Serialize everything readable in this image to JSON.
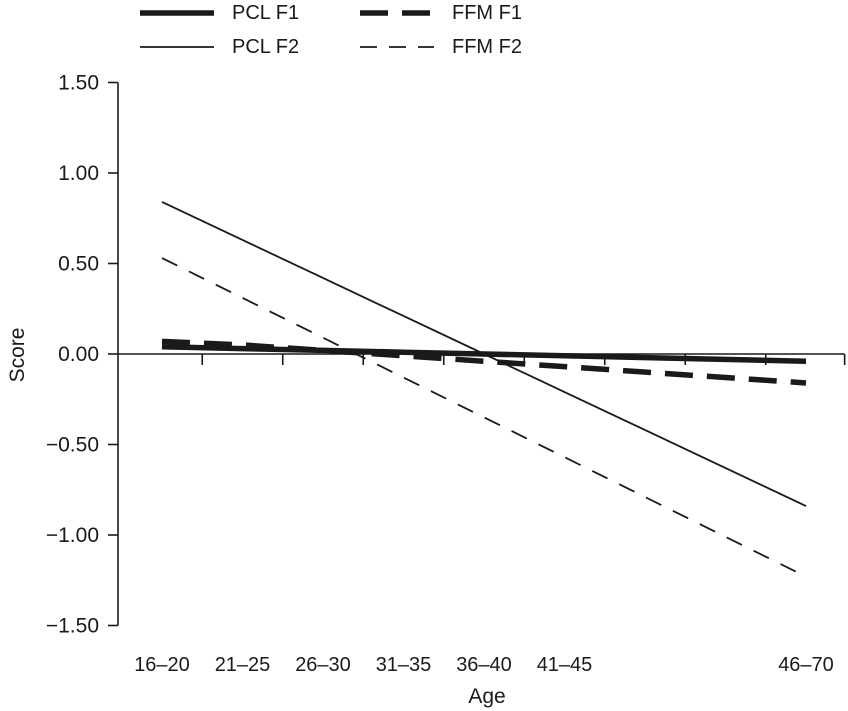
{
  "figure": {
    "background": "#ffffff",
    "ink_color": "#1a1a1a"
  },
  "legend": {
    "position": "top-left",
    "items": [
      {
        "label": "PCL F1",
        "weight": "thick",
        "dash": "solid"
      },
      {
        "label": "FFM F1",
        "weight": "thick",
        "dash": "dashed"
      },
      {
        "label": "PCL F2",
        "weight": "thin",
        "dash": "solid"
      },
      {
        "label": "FFM F2",
        "weight": "thin",
        "dash": "dashed"
      }
    ]
  },
  "chart_data": {
    "type": "line",
    "title": "",
    "xlabel": "Age",
    "ylabel": "Score",
    "categories": [
      "16–20",
      "21–25",
      "26–30",
      "31–35",
      "36–40",
      "41–45",
      "46–70"
    ],
    "category_age_midpoints": [
      18,
      23,
      28,
      33,
      38,
      43,
      58
    ],
    "series": [
      {
        "name": "PCL F2",
        "weight": "thin",
        "dash": "solid",
        "values": [
          0.84,
          0.63,
          0.42,
          0.21,
          0.0,
          -0.21,
          -0.84
        ]
      },
      {
        "name": "FFM F2",
        "weight": "thin",
        "dash": "dashed",
        "values": [
          0.53,
          0.31,
          0.09,
          -0.13,
          -0.35,
          -0.57,
          -1.23
        ]
      },
      {
        "name": "FFM F1",
        "weight": "thick",
        "dash": "dashed",
        "values": [
          0.07,
          0.05,
          0.02,
          -0.01,
          -0.04,
          -0.07,
          -0.16
        ]
      },
      {
        "name": "PCL F1",
        "weight": "thick",
        "dash": "solid",
        "values": [
          0.04,
          0.03,
          0.02,
          0.01,
          0.0,
          -0.01,
          -0.04
        ]
      }
    ],
    "ylim": [
      -1.5,
      1.5
    ],
    "y_ticks": [
      {
        "value": 1.5,
        "label": "1.50"
      },
      {
        "value": 1.0,
        "label": "1.00"
      },
      {
        "value": 0.5,
        "label": "0.50"
      },
      {
        "value": 0.0,
        "label": "0.00"
      },
      {
        "value": -0.5,
        "label": "−0.50"
      },
      {
        "value": -1.0,
        "label": "−1.00"
      },
      {
        "value": -1.5,
        "label": "−1.50"
      }
    ],
    "x_axis": {
      "baseline_at_zero": true,
      "boundary_tick_ages": [
        20.5,
        25.5,
        30.5,
        35.5,
        40.5,
        45.5,
        50.5,
        55.5,
        60.4
      ]
    },
    "grid": false,
    "legend_position": "top-left"
  }
}
